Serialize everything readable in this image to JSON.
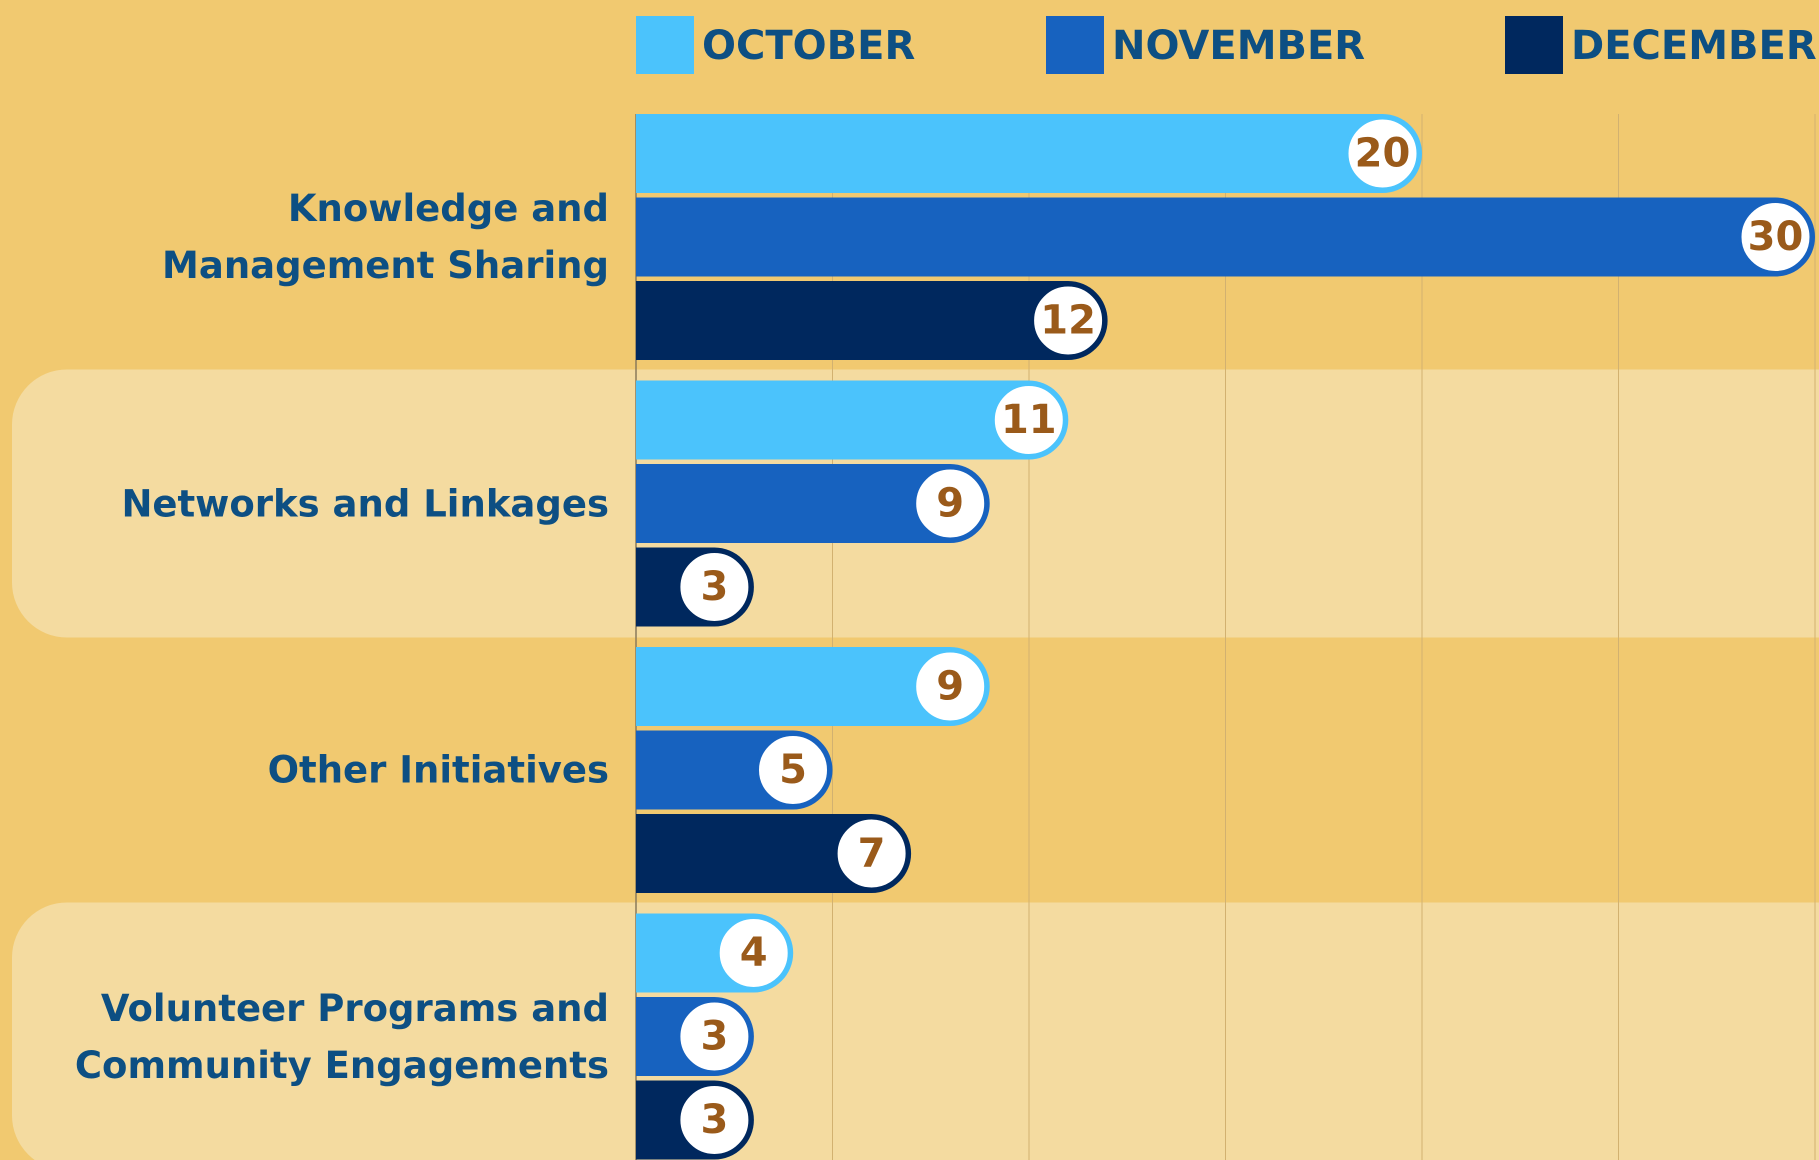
{
  "chart_data": {
    "type": "hbar",
    "categories": [
      "Knowledge and Management Sharing",
      "Networks and Linkages",
      "Other Initiatives",
      "Volunteer Programs and Community Engagements"
    ],
    "series": [
      {
        "name": "OCTOBER",
        "color": "#4bc3fc",
        "values": [
          20,
          11,
          9,
          4
        ]
      },
      {
        "name": "NOVEMBER",
        "color": "#1762bf",
        "values": [
          30,
          9,
          5,
          3
        ]
      },
      {
        "name": "DECEMBER",
        "color": "#00285e",
        "values": [
          12,
          3,
          7,
          3
        ]
      }
    ],
    "xlim": [
      0,
      30
    ],
    "xticks": [
      0,
      5,
      10,
      15,
      20,
      25,
      30
    ],
    "grid": true,
    "legend": "top"
  }
}
